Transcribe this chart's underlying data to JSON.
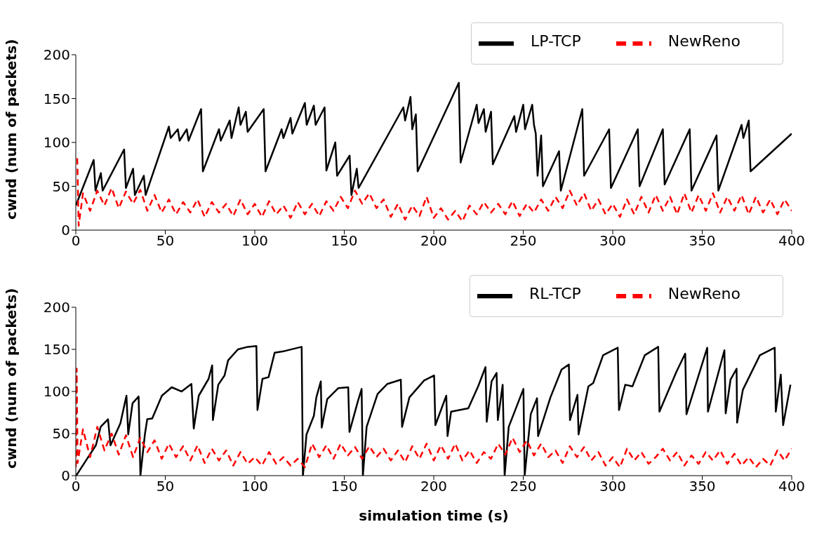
{
  "chart_data": [
    {
      "type": "line",
      "ylabel": "cwnd (num of packets)",
      "xlim": [
        0,
        400
      ],
      "xticks": [
        0,
        50,
        100,
        150,
        200,
        250,
        300,
        350,
        400
      ],
      "ylim": [
        0,
        200
      ],
      "yticks": [
        0,
        50,
        100,
        150,
        200
      ],
      "legend": "top right",
      "marker": "none",
      "series": [
        {
          "name": "LP-TCP",
          "color": "#000000",
          "line_style": "solid",
          "x": [
            0,
            10,
            11,
            14,
            15,
            27,
            28,
            32,
            33,
            38,
            39,
            52,
            53,
            57,
            58,
            62,
            63,
            70,
            71,
            80,
            81,
            86,
            87,
            91,
            92,
            95,
            96,
            105,
            106,
            115,
            116,
            120,
            121,
            128,
            129,
            133,
            134,
            139,
            140,
            145,
            146,
            153,
            154,
            157,
            158,
            183,
            184,
            187,
            188,
            190,
            191,
            214,
            215,
            224,
            225,
            228,
            229,
            232,
            233,
            245,
            246,
            250,
            251,
            255,
            256,
            257,
            258,
            260,
            261,
            270,
            271,
            283,
            284,
            298,
            299,
            314,
            315,
            328,
            329,
            343,
            344,
            358,
            359,
            372,
            373,
            376,
            377,
            400
          ],
          "values": [
            28,
            80,
            45,
            65,
            45,
            92,
            48,
            70,
            40,
            62,
            40,
            118,
            105,
            115,
            102,
            115,
            102,
            138,
            67,
            115,
            102,
            125,
            105,
            140,
            120,
            135,
            112,
            138,
            67,
            115,
            105,
            128,
            110,
            145,
            120,
            142,
            120,
            140,
            68,
            100,
            62,
            85,
            40,
            70,
            48,
            140,
            125,
            152,
            115,
            132,
            67,
            168,
            77,
            143,
            122,
            138,
            112,
            135,
            75,
            130,
            112,
            143,
            115,
            143,
            120,
            110,
            62,
            108,
            50,
            90,
            45,
            138,
            62,
            115,
            48,
            115,
            50,
            115,
            52,
            115,
            45,
            108,
            45,
            120,
            105,
            125,
            67,
            110
          ]
        },
        {
          "name": "NewReno",
          "color": "#ff0000",
          "line_style": "dashed",
          "x": [
            0.8,
            1.6,
            4,
            8,
            12,
            16,
            20,
            24,
            28,
            32,
            36,
            40,
            44,
            48,
            52,
            56,
            60,
            64,
            68,
            72,
            76,
            80,
            84,
            88,
            92,
            96,
            100,
            104,
            108,
            112,
            116,
            120,
            124,
            128,
            132,
            136,
            140,
            144,
            148,
            152,
            156,
            160,
            164,
            168,
            172,
            176,
            180,
            184,
            188,
            192,
            196,
            200,
            204,
            208,
            212,
            216,
            220,
            224,
            228,
            232,
            236,
            240,
            244,
            248,
            252,
            256,
            260,
            264,
            268,
            272,
            276,
            280,
            284,
            288,
            292,
            296,
            300,
            304,
            308,
            312,
            316,
            320,
            324,
            328,
            332,
            336,
            340,
            344,
            348,
            352,
            356,
            360,
            364,
            368,
            372,
            376,
            380,
            384,
            388,
            392,
            396,
            400
          ],
          "values": [
            82,
            5,
            42,
            22,
            45,
            28,
            48,
            25,
            44,
            30,
            46,
            22,
            40,
            20,
            35,
            18,
            32,
            20,
            35,
            15,
            32,
            20,
            30,
            16,
            35,
            18,
            30,
            15,
            33,
            18,
            28,
            14,
            32,
            18,
            30,
            16,
            33,
            22,
            38,
            25,
            45,
            30,
            42,
            25,
            35,
            15,
            30,
            12,
            28,
            16,
            38,
            14,
            25,
            12,
            22,
            10,
            28,
            18,
            32,
            20,
            30,
            18,
            33,
            16,
            30,
            20,
            35,
            22,
            38,
            25,
            45,
            28,
            42,
            22,
            35,
            18,
            30,
            15,
            35,
            18,
            38,
            20,
            40,
            22,
            38,
            18,
            42,
            20,
            40,
            22,
            42,
            20,
            38,
            22,
            40,
            18,
            38,
            20,
            35,
            18,
            35,
            22
          ]
        }
      ]
    },
    {
      "type": "line",
      "xlabel": "simulation time (s)",
      "ylabel": "cwnd (num of packets)",
      "xlim": [
        0,
        400
      ],
      "xticks": [
        0,
        50,
        100,
        150,
        200,
        250,
        300,
        350,
        400
      ],
      "ylim": [
        0,
        200
      ],
      "yticks": [
        0,
        50,
        100,
        150,
        200
      ],
      "legend": "top right",
      "marker": "none",
      "series": [
        {
          "name": "RL-TCP",
          "color": "#000000",
          "line_style": "solid",
          "x": [
            0.2,
            5.7,
            11.2,
            13.9,
            18,
            19.4,
            24.9,
            28.3,
            29.3,
            31.7,
            35.1,
            36.1,
            38.6,
            39.9,
            42.7,
            48.1,
            53.6,
            59.1,
            64.6,
            65.9,
            68.7,
            74.2,
            76.2,
            76.6,
            79.6,
            83.1,
            85.1,
            90.6,
            96.1,
            100.9,
            101.5,
            104.3,
            107.7,
            111.1,
            116.6,
            126.2,
            126.9,
            128.9,
            133,
            134.4,
            136.9,
            137.4,
            140.5,
            146.7,
            152.2,
            152.9,
            157.7,
            159.7,
            160.4,
            162.5,
            168.6,
            174.1,
            181.6,
            182.3,
            186.4,
            194.6,
            200.2,
            200.9,
            207,
            207.7,
            209.7,
            219.3,
            224.8,
            228.9,
            229.6,
            232.3,
            235.1,
            235.8,
            238.5,
            239.6,
            241.9,
            250.1,
            250.8,
            254.2,
            257.7,
            258.3,
            265.2,
            271.4,
            275.5,
            276.1,
            280.3,
            280.9,
            286.4,
            289.1,
            294.6,
            302.8,
            303.5,
            307,
            311,
            317.9,
            325.4,
            326.1,
            335.7,
            340.5,
            341.2,
            352.8,
            353.2,
            362.4,
            363.1,
            365.8,
            369.2,
            369.5,
            372.7,
            382.2,
            390.5,
            391.1,
            393.9,
            395.2,
            399.3
          ],
          "values": [
            0,
            18,
            36,
            58,
            67,
            36,
            62,
            95,
            49,
            86,
            94,
            0,
            49,
            67,
            68,
            95,
            105,
            100,
            109,
            56,
            95,
            115,
            131,
            66,
            108,
            119,
            137,
            150,
            153,
            154,
            78,
            115,
            117,
            146,
            148,
            153,
            0,
            49,
            71,
            93,
            112,
            57,
            91,
            104,
            105,
            52,
            89,
            103,
            0,
            58,
            97,
            109,
            114,
            58,
            93,
            113,
            119,
            60,
            95,
            47,
            76,
            80,
            106,
            129,
            64,
            112,
            122,
            66,
            108,
            0,
            58,
            103,
            0,
            73,
            92,
            47,
            93,
            126,
            132,
            66,
            96,
            49,
            106,
            110,
            143,
            152,
            78,
            108,
            106,
            143,
            153,
            76,
            124,
            145,
            73,
            152,
            76,
            149,
            74,
            114,
            127,
            63,
            102,
            143,
            152,
            76,
            120,
            60,
            108
          ]
        },
        {
          "name": "NewReno",
          "color": "#ff0000",
          "line_style": "dashed",
          "x": [
            0,
            0.5,
            1,
            4,
            8,
            12,
            16,
            20,
            24,
            28,
            32,
            36,
            40,
            44,
            48,
            52,
            56,
            60,
            64,
            68,
            72,
            76,
            80,
            84,
            88,
            92,
            96,
            100,
            104,
            108,
            112,
            116,
            120,
            124,
            128,
            132,
            136,
            140,
            144,
            148,
            152,
            156,
            160,
            164,
            168,
            172,
            176,
            180,
            184,
            188,
            192,
            196,
            200,
            204,
            208,
            212,
            216,
            220,
            224,
            228,
            232,
            236,
            240,
            244,
            248,
            252,
            256,
            260,
            264,
            268,
            272,
            276,
            280,
            284,
            288,
            292,
            296,
            300,
            304,
            308,
            312,
            316,
            320,
            324,
            328,
            332,
            336,
            340,
            344,
            348,
            352,
            356,
            360,
            364,
            368,
            372,
            376,
            380,
            384,
            388,
            392,
            396,
            400
          ],
          "values": [
            10,
            127,
            15,
            55,
            22,
            58,
            30,
            50,
            25,
            48,
            22,
            45,
            28,
            42,
            20,
            38,
            22,
            35,
            18,
            36,
            15,
            32,
            18,
            30,
            12,
            28,
            14,
            22,
            12,
            28,
            14,
            22,
            12,
            20,
            10,
            38,
            22,
            36,
            20,
            38,
            24,
            34,
            20,
            35,
            22,
            32,
            18,
            30,
            16,
            35,
            20,
            38,
            18,
            36,
            20,
            38,
            18,
            30,
            15,
            28,
            20,
            38,
            25,
            45,
            28,
            42,
            24,
            38,
            22,
            30,
            15,
            35,
            22,
            34,
            18,
            28,
            12,
            22,
            10,
            32,
            18,
            28,
            14,
            22,
            32,
            18,
            28,
            12,
            24,
            14,
            28,
            18,
            30,
            14,
            26,
            12,
            22,
            10,
            20,
            12,
            30,
            18,
            32
          ]
        }
      ]
    }
  ]
}
